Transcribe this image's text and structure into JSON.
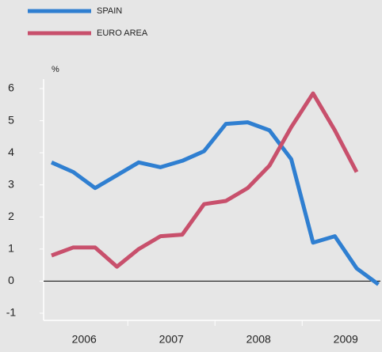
{
  "chart_data": {
    "type": "line",
    "y_label": "%",
    "categories": [
      null,
      "2006",
      null,
      null,
      null,
      "2007",
      null,
      null,
      null,
      "2008",
      null,
      null,
      null,
      "2009",
      null,
      null
    ],
    "series": [
      {
        "name": "SPAIN",
        "color": "#2f7fd1",
        "values": [
          3.7,
          3.4,
          2.9,
          3.3,
          3.7,
          3.55,
          3.75,
          4.05,
          4.9,
          4.95,
          4.7,
          3.8,
          1.2,
          1.4,
          0.4,
          -0.1
        ]
      },
      {
        "name": "EURO AREA",
        "color": "#c8506c",
        "values": [
          0.8,
          1.05,
          1.05,
          0.45,
          1.0,
          1.4,
          1.45,
          2.4,
          2.5,
          2.9,
          3.6,
          4.8,
          5.85,
          4.7,
          3.4,
          null
        ]
      }
    ],
    "ylim": [
      -1,
      6
    ],
    "yticks": [
      -1,
      0,
      1,
      2,
      3,
      4,
      5,
      6
    ]
  }
}
